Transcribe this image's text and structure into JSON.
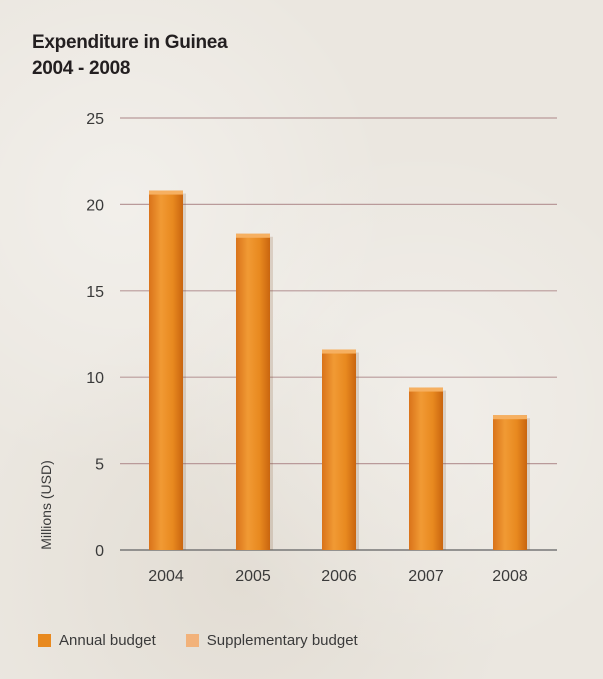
{
  "title_line1": "Expenditure in Guinea",
  "title_line2": "2004 - 2008",
  "colors": {
    "annual": "#e8891f",
    "supplementary": "#f2b27a",
    "grid": "#b99a9a",
    "axis": "#777777"
  },
  "chart_data": {
    "type": "bar",
    "title": "Expenditure in Guinea 2004 - 2008",
    "xlabel": "",
    "ylabel": "Millions (USD)",
    "ylim": [
      0,
      25
    ],
    "yticks": [
      "0",
      "5",
      "10",
      "15",
      "20",
      "25"
    ],
    "categories": [
      "2004",
      "2005",
      "2006",
      "2007",
      "2008"
    ],
    "series": [
      {
        "name": "Annual budget",
        "values": [
          20.8,
          18.3,
          11.6,
          9.4,
          7.8
        ]
      },
      {
        "name": "Supplementary budget",
        "values": [
          0,
          0,
          0,
          0,
          0
        ]
      }
    ],
    "grid": true,
    "legend_position": "bottom-left"
  },
  "legend": {
    "annual_label": "Annual budget",
    "supplementary_label": "Supplementary budget"
  }
}
